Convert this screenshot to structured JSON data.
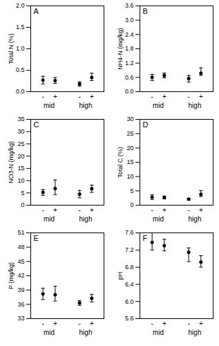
{
  "chart_data": [
    {
      "type": "errorbar",
      "title": "A",
      "ylabel": "Total N (%)",
      "categories": [
        "-",
        "+",
        "-",
        "+"
      ],
      "groups": [
        "mid",
        "mid",
        "high",
        "high"
      ],
      "values": [
        0.27,
        0.26,
        0.18,
        0.33
      ],
      "error_low": [
        0.09,
        0.07,
        0.05,
        0.07
      ],
      "error_high": [
        0.09,
        0.07,
        0.05,
        0.1
      ],
      "ylim": [
        0.0,
        2.0
      ],
      "yticks": [
        {
          "value": 0,
          "label": "0.0"
        },
        0.5,
        {
          "value": 1,
          "label": "1.0"
        },
        1.5,
        {
          "value": 2,
          "label": "2.0"
        }
      ]
    },
    {
      "type": "errorbar",
      "title": "B",
      "ylabel": "NH4-N (mg/kg)",
      "categories": [
        "-",
        "+",
        "-",
        "+"
      ],
      "groups": [
        "mid",
        "mid",
        "high",
        "high"
      ],
      "values": [
        0.6,
        0.68,
        0.55,
        0.78
      ],
      "error_low": [
        0.13,
        0.1,
        0.15,
        0.1
      ],
      "error_high": [
        0.13,
        0.1,
        0.13,
        0.22
      ],
      "ylim": [
        0.0,
        3.6
      ],
      "yticks": [
        {
          "value": 0,
          "label": "0.0"
        },
        0.6,
        1.2,
        1.8,
        2.4,
        {
          "value": 3,
          "label": "3.0"
        },
        3.6
      ]
    },
    {
      "type": "errorbar",
      "title": "C",
      "ylabel": "NO3-N (mg/kg)",
      "categories": [
        "-",
        "+",
        "-",
        "+"
      ],
      "groups": [
        "mid",
        "mid",
        "high",
        "high"
      ],
      "values": [
        5.2,
        6.8,
        4.5,
        6.7
      ],
      "error_low": [
        1.2,
        2.5,
        1.5,
        1.5
      ],
      "error_high": [
        1.2,
        3.5,
        1.5,
        1.5
      ],
      "ylim": [
        0,
        35
      ],
      "yticks": [
        0,
        5,
        10,
        15,
        20,
        25,
        30,
        35
      ]
    },
    {
      "type": "errorbar",
      "title": "D",
      "ylabel": "Total C (%)",
      "categories": [
        "-",
        "+",
        "-",
        "+"
      ],
      "groups": [
        "mid",
        "mid",
        "high",
        "high"
      ],
      "values": [
        2.8,
        2.7,
        2.1,
        3.8
      ],
      "error_low": [
        0.8,
        0.5,
        0.3,
        0.8
      ],
      "error_high": [
        0.8,
        0.5,
        0.3,
        1.3
      ],
      "ylim": [
        0,
        30
      ],
      "yticks": [
        0,
        5,
        10,
        15,
        20,
        25,
        30
      ]
    },
    {
      "type": "errorbar",
      "title": "E",
      "ylabel": "P (mg/kg)",
      "categories": [
        "-",
        "+",
        "-",
        "+"
      ],
      "groups": [
        "mid",
        "mid",
        "high",
        "high"
      ],
      "values": [
        38.2,
        38.0,
        36.3,
        37.3
      ],
      "error_low": [
        1.2,
        1.3,
        0.5,
        0.8
      ],
      "error_high": [
        1.2,
        1.8,
        0.5,
        0.8
      ],
      "ylim": [
        33,
        51
      ],
      "yticks": [
        33,
        36,
        39,
        42,
        45,
        48,
        51
      ]
    },
    {
      "type": "errorbar",
      "title": "F",
      "ylabel": "pH",
      "categories": [
        "-",
        "+",
        "-",
        "+"
      ],
      "groups": [
        "mid",
        "mid",
        "high",
        "high"
      ],
      "values": [
        7.38,
        7.3,
        7.15,
        6.92
      ],
      "error_low": [
        0.18,
        0.12,
        0.22,
        0.12
      ],
      "error_high": [
        0.22,
        0.15,
        0.1,
        0.15
      ],
      "ylim": [
        5.6,
        7.6
      ],
      "yticks": [
        5.6,
        {
          "value": 6,
          "label": "6.0"
        },
        6.4,
        6.8,
        7.2,
        7.6
      ]
    }
  ]
}
